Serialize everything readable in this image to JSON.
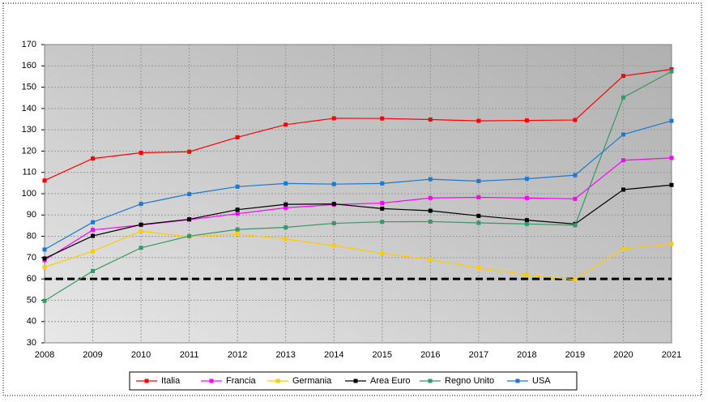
{
  "chart_data": {
    "type": "line",
    "categories": [
      "2008",
      "2009",
      "2010",
      "2011",
      "2012",
      "2013",
      "2014",
      "2015",
      "2016",
      "2017",
      "2018",
      "2019",
      "2020",
      "2021"
    ],
    "series": [
      {
        "name": "Italia",
        "color": "#ff0000",
        "values": [
          106.2,
          116.5,
          119.2,
          119.7,
          126.5,
          132.4,
          135.4,
          135.3,
          134.8,
          134.2,
          134.4,
          134.6,
          155.3,
          158.4
        ]
      },
      {
        "name": "Francia",
        "color": "#ff00ff",
        "values": [
          68.8,
          83.0,
          85.3,
          87.8,
          90.6,
          93.4,
          94.9,
          95.6,
          98.0,
          98.3,
          98.0,
          97.6,
          115.7,
          116.8
        ]
      },
      {
        "name": "Germania",
        "color": "#ffcc00",
        "values": [
          65.5,
          73.0,
          82.4,
          79.8,
          81.1,
          78.7,
          75.6,
          72.0,
          69.0,
          65.2,
          61.9,
          59.7,
          74.1,
          76.4
        ]
      },
      {
        "name": "Area Euro",
        "color": "#000000",
        "values": [
          69.6,
          80.2,
          85.5,
          88.0,
          92.5,
          95.0,
          95.2,
          93.0,
          92.0,
          89.6,
          87.6,
          85.8,
          101.9,
          104.1
        ]
      },
      {
        "name": "Regno Unito",
        "color": "#339966",
        "values": [
          49.7,
          63.7,
          74.6,
          80.1,
          83.2,
          84.2,
          86.1,
          86.8,
          86.9,
          86.3,
          85.8,
          85.2,
          145.2,
          157.4
        ]
      },
      {
        "name": "USA",
        "color": "#1f78d0",
        "values": [
          73.8,
          86.6,
          95.2,
          99.8,
          103.3,
          104.8,
          104.5,
          104.8,
          106.8,
          105.9,
          107.0,
          108.7,
          127.8,
          134.2
        ]
      }
    ],
    "reference_line": 60,
    "ylim": [
      30,
      170
    ],
    "yticks": [
      30,
      40,
      50,
      60,
      70,
      80,
      90,
      100,
      110,
      120,
      130,
      140,
      150,
      160,
      170
    ],
    "grid": true,
    "legend": "bottom"
  }
}
